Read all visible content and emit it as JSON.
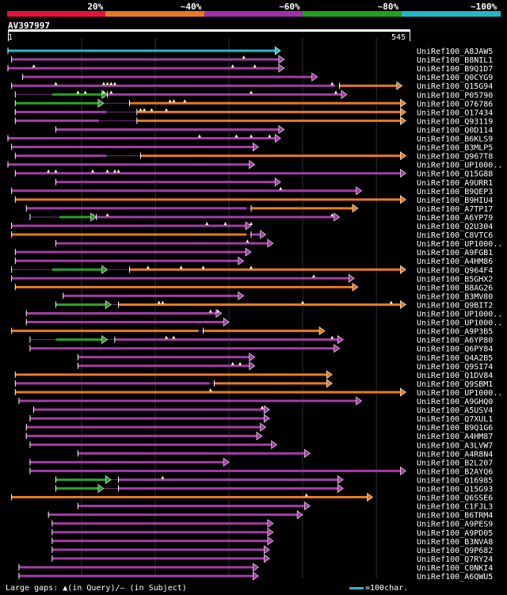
{
  "chart_data": {
    "type": "bar",
    "title": "",
    "query": {
      "name": "AV397997",
      "length": 545,
      "start_label": "1",
      "end_label": "545"
    },
    "legend": {
      "labels": [
        "20%",
        "~40%",
        "~60%",
        "~80%",
        "~100%"
      ],
      "colors": [
        "#e8113a",
        "#e87a20",
        "#a030a8",
        "#20a020",
        "#20b8c8"
      ]
    },
    "series": [
      {
        "name": "UniRef100_A8JAW5",
        "x": [
          0,
          370
        ],
        "color": "cyan",
        "marks": []
      },
      {
        "name": "UniRef100_B8NIL1",
        "x": [
          5,
          375
        ],
        "color": "purple",
        "marks": [
          320
        ]
      },
      {
        "name": "UniRef100_B9Q1D7",
        "x": [
          0,
          375
        ],
        "color": "purple",
        "marks": [
          35,
          305,
          335
        ]
      },
      {
        "name": "UniRef100_Q0CYG9",
        "x": [
          20,
          420
        ],
        "color": "purple",
        "marks": []
      },
      {
        "name": "UniRef100_Q15G94",
        "x": [
          5,
          535
        ],
        "color": "mixed",
        "marks": [
          65,
          130,
          135,
          140,
          145,
          440
        ],
        "segments": [
          [
            5,
            450,
            "purple"
          ],
          [
            450,
            535,
            "orange"
          ]
        ]
      },
      {
        "name": "UniRef100_P05790",
        "x": [
          10,
          460
        ],
        "color": "mixed",
        "marks": [
          95,
          105,
          130,
          140,
          330,
          445
        ],
        "segments": [
          [
            60,
            135,
            "green"
          ],
          [
            135,
            460,
            "purple"
          ]
        ]
      },
      {
        "name": "UniRef100_O76786",
        "x": [
          10,
          540
        ],
        "color": "mixed",
        "marks": [
          220,
          225,
          240
        ],
        "segments": [
          [
            10,
            130,
            "green"
          ],
          [
            165,
            540,
            "orange"
          ]
        ]
      },
      {
        "name": "UniRef100_O17434",
        "x": [
          10,
          540
        ],
        "color": "mixed",
        "marks": [
          180,
          185,
          195,
          215
        ],
        "segments": [
          [
            10,
            140,
            "purple"
          ],
          [
            175,
            540,
            "orange"
          ]
        ]
      },
      {
        "name": "UniRef100_Q93119",
        "x": [
          10,
          540
        ],
        "color": "mixed",
        "marks": [],
        "segments": [
          [
            10,
            130,
            "purple"
          ],
          [
            175,
            540,
            "orange"
          ]
        ]
      },
      {
        "name": "UniRef100_Q0D114",
        "x": [
          65,
          375
        ],
        "color": "purple",
        "marks": []
      },
      {
        "name": "UniRef100_B6KLS9",
        "x": [
          0,
          370
        ],
        "color": "purple",
        "marks": [
          260,
          310,
          330,
          355
        ]
      },
      {
        "name": "UniRef100_B3MLP5",
        "x": [
          5,
          340
        ],
        "color": "purple",
        "marks": []
      },
      {
        "name": "UniRef100_Q967T8",
        "x": [
          10,
          540
        ],
        "color": "mixed",
        "marks": [],
        "segments": [
          [
            10,
            140,
            "purple"
          ],
          [
            180,
            540,
            "orange"
          ]
        ]
      },
      {
        "name": "UniRef100_UP1000..",
        "x": [
          0,
          335
        ],
        "color": "purple",
        "marks": []
      },
      {
        "name": "UniRef100_Q15G88",
        "x": [
          10,
          540
        ],
        "color": "mixed",
        "marks": [
          55,
          65,
          115,
          135,
          145,
          150
        ],
        "segments": [
          [
            10,
            540,
            "purple"
          ]
        ]
      },
      {
        "name": "UniRef100_A9URR1",
        "x": [
          65,
          370
        ],
        "color": "purple",
        "marks": []
      },
      {
        "name": "UniRef100_B9QEP3",
        "x": [
          5,
          480
        ],
        "color": "purple",
        "marks": [
          370
        ]
      },
      {
        "name": "UniRef100_B9HIU4",
        "x": [
          10,
          540
        ],
        "color": "orange",
        "marks": []
      },
      {
        "name": "UniRef100_A7TP17",
        "x": [
          25,
          475
        ],
        "color": "mixed",
        "marks": [],
        "segments": [
          [
            25,
            330,
            "purple"
          ],
          [
            330,
            475,
            "orange"
          ]
        ]
      },
      {
        "name": "UniRef100_A6YP79",
        "x": [
          30,
          450
        ],
        "color": "mixed",
        "marks": [
          135,
          440
        ],
        "segments": [
          [
            70,
            120,
            "green"
          ],
          [
            120,
            450,
            "purple"
          ]
        ]
      },
      {
        "name": "UniRef100_Q2U304",
        "x": [
          5,
          330
        ],
        "color": "purple",
        "marks": [
          270,
          295,
          330
        ]
      },
      {
        "name": "UniRef100_C8VTC6",
        "x": [
          5,
          350
        ],
        "color": "mixed",
        "marks": [],
        "segments": [
          [
            5,
            330,
            "orange"
          ],
          [
            330,
            350,
            "purple"
          ]
        ]
      },
      {
        "name": "UniRef100_UP1000..",
        "x": [
          65,
          360
        ],
        "color": "purple",
        "marks": [
          325
        ]
      },
      {
        "name": "UniRef100_A9FGB1",
        "x": [
          10,
          330
        ],
        "color": "purple",
        "marks": []
      },
      {
        "name": "UniRef100_A4HM86",
        "x": [
          10,
          320
        ],
        "color": "purple",
        "marks": []
      },
      {
        "name": "UniRef100_Q964F4",
        "x": [
          5,
          540
        ],
        "color": "mixed",
        "marks": [
          190,
          235,
          265,
          330
        ],
        "segments": [
          [
            60,
            135,
            "green"
          ],
          [
            165,
            540,
            "orange"
          ]
        ]
      },
      {
        "name": "UniRef100_B5GHX2",
        "x": [
          5,
          470
        ],
        "color": "purple",
        "marks": [
          415
        ]
      },
      {
        "name": "UniRef100_B8AG26",
        "x": [
          10,
          475
        ],
        "color": "orange",
        "marks": []
      },
      {
        "name": "UniRef100_B3MV80",
        "x": [
          75,
          320
        ],
        "color": "purple",
        "marks": []
      },
      {
        "name": "UniRef100_Q9BIT2",
        "x": [
          65,
          540
        ],
        "color": "mixed",
        "marks": [
          205,
          210,
          400,
          520
        ],
        "segments": [
          [
            65,
            140,
            "green"
          ],
          [
            150,
            540,
            "orange"
          ]
        ]
      },
      {
        "name": "UniRef100_UP1000..",
        "x": [
          25,
          290
        ],
        "color": "purple",
        "marks": [
          275,
          285
        ]
      },
      {
        "name": "UniRef100_UP1000..",
        "x": [
          25,
          300
        ],
        "color": "purple",
        "marks": []
      },
      {
        "name": "UniRef100_A9P3B5",
        "x": [
          5,
          430
        ],
        "color": "mixed",
        "marks": [],
        "segments": [
          [
            5,
            265,
            "orange"
          ],
          [
            265,
            430,
            "orange"
          ]
        ]
      },
      {
        "name": "UniRef100_A6YP80",
        "x": [
          30,
          455
        ],
        "color": "mixed",
        "marks": [
          215,
          225,
          440
        ],
        "segments": [
          [
            65,
            135,
            "green"
          ],
          [
            145,
            455,
            "purple"
          ]
        ]
      },
      {
        "name": "UniRef100_Q6PY84",
        "x": [
          30,
          450
        ],
        "color": "purple",
        "marks": []
      },
      {
        "name": "UniRef100_Q4A2B5",
        "x": [
          95,
          335
        ],
        "color": "purple",
        "marks": []
      },
      {
        "name": "UniRef100_Q9SI74",
        "x": [
          95,
          335
        ],
        "color": "purple",
        "marks": [
          305,
          315
        ]
      },
      {
        "name": "UniRef100_Q1DV84",
        "x": [
          10,
          440
        ],
        "color": "orange",
        "marks": []
      },
      {
        "name": "UniRef100_Q9SBM1",
        "x": [
          10,
          440
        ],
        "color": "mixed",
        "marks": [],
        "segments": [
          [
            10,
            280,
            "purple"
          ],
          [
            280,
            440,
            "orange"
          ]
        ]
      },
      {
        "name": "UniRef100_UP1000..",
        "x": [
          10,
          540
        ],
        "color": "orange",
        "marks": [
          275
        ]
      },
      {
        "name": "UniRef100_A9GHQ0",
        "x": [
          15,
          480
        ],
        "color": "purple",
        "marks": []
      },
      {
        "name": "UniRef100_A5USV4",
        "x": [
          35,
          355
        ],
        "color": "purple",
        "marks": [
          345
        ]
      },
      {
        "name": "UniRef100_Q7XUL1",
        "x": [
          30,
          355
        ],
        "color": "purple",
        "marks": []
      },
      {
        "name": "UniRef100_B9Q1G6",
        "x": [
          25,
          350
        ],
        "color": "purple",
        "marks": []
      },
      {
        "name": "UniRef100_A4HM87",
        "x": [
          25,
          345
        ],
        "color": "purple",
        "marks": []
      },
      {
        "name": "UniRef100_A3LVW7",
        "x": [
          30,
          365
        ],
        "color": "purple",
        "marks": []
      },
      {
        "name": "UniRef100_A4R8N4",
        "x": [
          95,
          410
        ],
        "color": "purple",
        "marks": []
      },
      {
        "name": "UniRef100_B2L207",
        "x": [
          30,
          300
        ],
        "color": "purple",
        "marks": []
      },
      {
        "name": "UniRef100_B2AYQ6",
        "x": [
          30,
          540
        ],
        "color": "purple",
        "marks": []
      },
      {
        "name": "UniRef100_Q16985",
        "x": [
          65,
          455
        ],
        "color": "mixed",
        "marks": [
          210
        ],
        "segments": [
          [
            65,
            140,
            "green"
          ],
          [
            150,
            455,
            "purple"
          ]
        ]
      },
      {
        "name": "UniRef100_Q15G93",
        "x": [
          65,
          455
        ],
        "color": "mixed",
        "marks": [],
        "segments": [
          [
            65,
            130,
            "green"
          ],
          [
            150,
            455,
            "purple"
          ]
        ]
      },
      {
        "name": "UniRef100_Q6SSE6",
        "x": [
          5,
          495
        ],
        "color": "orange",
        "marks": [
          405
        ]
      },
      {
        "name": "UniRef100_C1FJL3",
        "x": [
          95,
          410
        ],
        "color": "purple",
        "marks": []
      },
      {
        "name": "UniRef100_B6TRM4",
        "x": [
          55,
          400
        ],
        "color": "purple",
        "marks": []
      },
      {
        "name": "UniRef100_A9PES9",
        "x": [
          60,
          360
        ],
        "color": "purple",
        "marks": []
      },
      {
        "name": "UniRef100_A9PD05",
        "x": [
          60,
          360
        ],
        "color": "purple",
        "marks": []
      },
      {
        "name": "UniRef100_B3NVA8",
        "x": [
          60,
          360
        ],
        "color": "purple",
        "marks": []
      },
      {
        "name": "UniRef100_Q9P682",
        "x": [
          60,
          355
        ],
        "color": "purple",
        "marks": []
      },
      {
        "name": "UniRef100_Q7RY24",
        "x": [
          60,
          355
        ],
        "color": "purple",
        "marks": []
      },
      {
        "name": "UniRef100_C0NKI4",
        "x": [
          15,
          340
        ],
        "color": "purple",
        "marks": []
      },
      {
        "name": "UniRef100_A6QWU5",
        "x": [
          15,
          340
        ],
        "color": "purple",
        "marks": []
      }
    ]
  },
  "footer": {
    "left_text": "Large gaps: ▲(in Query)/– (in Subject)",
    "right_text": "=100char."
  }
}
